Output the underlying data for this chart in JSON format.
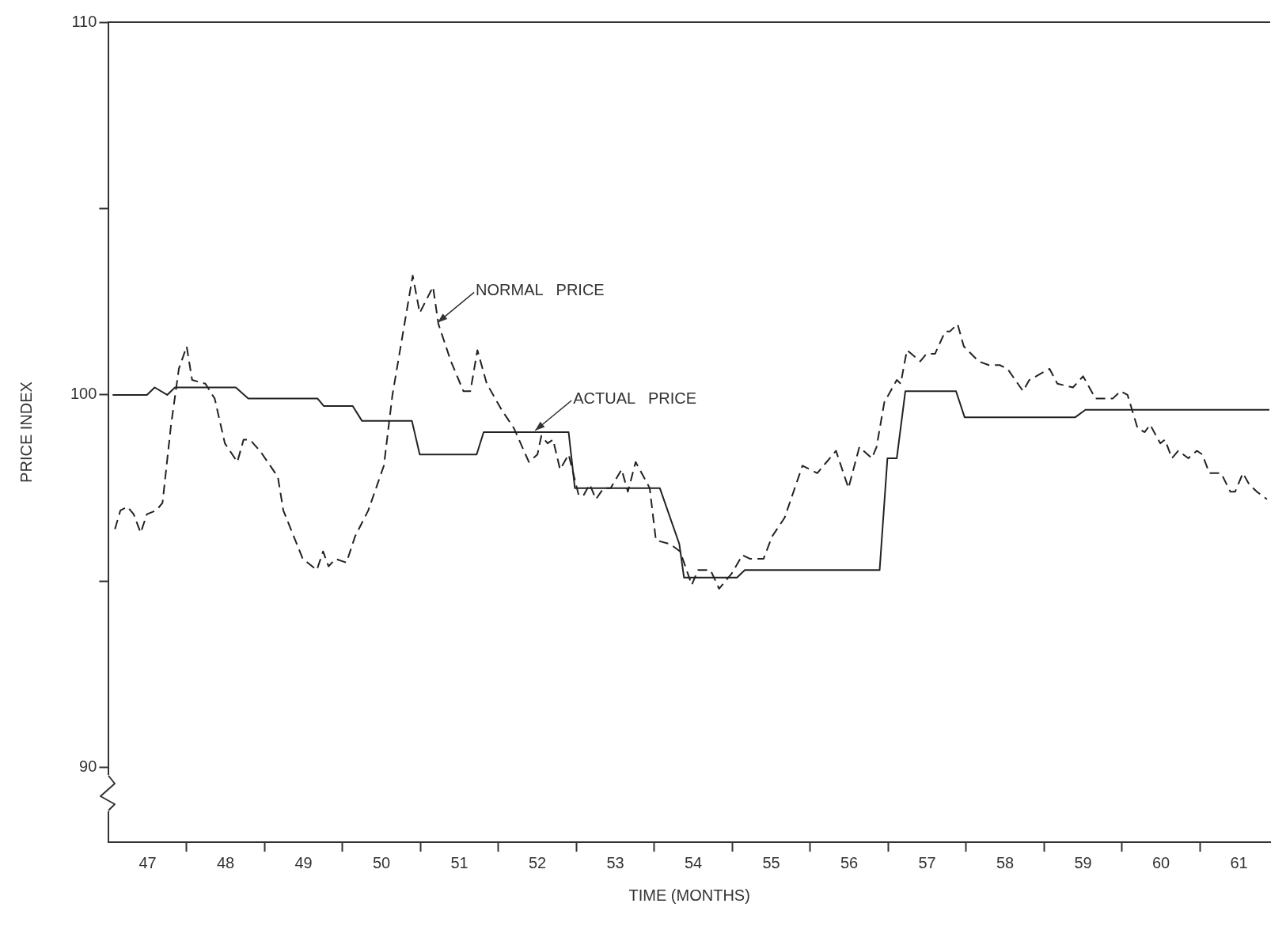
{
  "chart_data": {
    "type": "line",
    "xlabel": "TIME (MONTHS)",
    "ylabel": "PRICE INDEX",
    "xlim": [
      47,
      61.9
    ],
    "ylim": [
      88,
      110
    ],
    "xticks": [
      {
        "value": 47.5,
        "label": "47"
      },
      {
        "value": 48,
        "label": null
      },
      {
        "value": 48.5,
        "label": "48"
      },
      {
        "value": 49,
        "label": null
      },
      {
        "value": 49.5,
        "label": "49"
      },
      {
        "value": 50,
        "label": null
      },
      {
        "value": 50.5,
        "label": "50"
      },
      {
        "value": 51,
        "label": null
      },
      {
        "value": 51.5,
        "label": "51"
      },
      {
        "value": 52,
        "label": null
      },
      {
        "value": 52.5,
        "label": "52"
      },
      {
        "value": 53,
        "label": null
      },
      {
        "value": 53.5,
        "label": "53"
      },
      {
        "value": 54,
        "label": null
      },
      {
        "value": 54.5,
        "label": "54"
      },
      {
        "value": 55,
        "label": null
      },
      {
        "value": 55.5,
        "label": "55"
      },
      {
        "value": 56,
        "label": null
      },
      {
        "value": 56.5,
        "label": "56"
      },
      {
        "value": 57,
        "label": null
      },
      {
        "value": 57.5,
        "label": "57"
      },
      {
        "value": 58,
        "label": null
      },
      {
        "value": 58.5,
        "label": "58"
      },
      {
        "value": 59,
        "label": null
      },
      {
        "value": 59.5,
        "label": "59"
      },
      {
        "value": 60,
        "label": null
      },
      {
        "value": 60.5,
        "label": "60"
      },
      {
        "value": 61,
        "label": null
      },
      {
        "value": 61.5,
        "label": "61"
      }
    ],
    "yticks": [
      90,
      {
        "value": 95,
        "label": null
      },
      100,
      {
        "value": 105,
        "label": null
      },
      110
    ],
    "grid": false,
    "legend": false,
    "marker": "none",
    "annotations": [
      {
        "text": "NORMAL PRICE",
        "x": 51.2,
        "y": 101.9
      },
      {
        "text": "ACTUAL PRICE",
        "x": 52.45,
        "y": 99.0
      }
    ],
    "series": [
      {
        "color": "#222222",
        "line_style": "dashed",
        "x": [
          47.08,
          47.15,
          47.24,
          47.32,
          47.41,
          47.49,
          47.61,
          47.69,
          47.8,
          47.9,
          48.0,
          48.07,
          48.24,
          48.36,
          48.49,
          48.65,
          48.73,
          48.81,
          48.94,
          49.17,
          49.24,
          49.49,
          49.67,
          49.75,
          49.82,
          49.91,
          50.05,
          50.16,
          50.33,
          50.53,
          50.64,
          50.9,
          50.99,
          51.16,
          51.23,
          51.39,
          51.55,
          51.64,
          51.73,
          51.85,
          52.04,
          52.2,
          52.39,
          52.5,
          52.55,
          52.63,
          52.7,
          52.79,
          52.9,
          53.03,
          53.09,
          53.17,
          53.25,
          53.35,
          53.44,
          53.58,
          53.66,
          53.76,
          53.94,
          54.02,
          54.2,
          54.33,
          54.48,
          54.56,
          54.72,
          54.83,
          54.99,
          55.13,
          55.23,
          55.4,
          55.51,
          55.67,
          55.9,
          56.09,
          56.33,
          56.49,
          56.63,
          56.79,
          56.85,
          56.95,
          57.11,
          57.16,
          57.24,
          57.41,
          57.49,
          57.6,
          57.73,
          57.79,
          57.89,
          57.97,
          58.16,
          58.29,
          58.43,
          58.53,
          58.73,
          58.81,
          59.07,
          59.17,
          59.37,
          59.5,
          59.66,
          59.88,
          59.98,
          60.07,
          60.2,
          60.29,
          60.36,
          60.49,
          60.55,
          60.64,
          60.72,
          60.85,
          60.96,
          61.03,
          61.12,
          61.27,
          61.39,
          61.45,
          61.55,
          61.63,
          61.73,
          61.86
        ],
        "values": [
          96.4,
          96.9,
          97.0,
          96.8,
          96.3,
          96.8,
          96.9,
          97.1,
          99.2,
          100.7,
          101.3,
          100.4,
          100.3,
          99.9,
          98.7,
          98.2,
          98.8,
          98.8,
          98.5,
          97.8,
          96.9,
          95.6,
          95.3,
          95.8,
          95.4,
          95.6,
          95.5,
          96.2,
          96.9,
          98.1,
          100.0,
          103.2,
          102.2,
          102.9,
          101.9,
          100.9,
          100.1,
          100.1,
          101.2,
          100.3,
          99.6,
          99.1,
          98.2,
          98.4,
          98.9,
          98.7,
          98.8,
          98.0,
          98.4,
          97.3,
          97.3,
          97.6,
          97.2,
          97.5,
          97.5,
          98.0,
          97.4,
          98.2,
          97.5,
          96.1,
          96.0,
          95.8,
          94.9,
          95.3,
          95.3,
          94.8,
          95.2,
          95.7,
          95.6,
          95.6,
          96.2,
          96.7,
          98.1,
          97.9,
          98.5,
          97.5,
          98.6,
          98.3,
          98.6,
          99.8,
          100.4,
          100.3,
          101.2,
          100.9,
          101.1,
          101.1,
          101.7,
          101.7,
          101.9,
          101.3,
          100.9,
          100.8,
          100.8,
          100.7,
          100.1,
          100.4,
          100.7,
          100.3,
          100.2,
          100.5,
          99.9,
          99.9,
          100.1,
          100.0,
          99.1,
          99.0,
          99.2,
          98.7,
          98.8,
          98.3,
          98.5,
          98.3,
          98.5,
          98.4,
          97.9,
          97.9,
          97.4,
          97.4,
          97.9,
          97.6,
          97.4,
          97.2
        ]
      },
      {
        "color": "#222222",
        "line_style": "solid",
        "x": [
          47.05,
          47.49,
          47.59,
          47.75,
          47.85,
          48.63,
          48.79,
          49.68,
          49.76,
          50.13,
          50.25,
          50.89,
          50.99,
          51.72,
          51.81,
          52.9,
          52.98,
          54.07,
          54.32,
          54.38,
          55.06,
          55.16,
          56.89,
          56.99,
          57.11,
          57.22,
          57.87,
          57.98,
          59.4,
          59.53,
          61.89
        ],
        "values": [
          100.0,
          100.0,
          100.2,
          100.0,
          100.2,
          100.2,
          99.9,
          99.9,
          99.7,
          99.7,
          99.3,
          99.3,
          98.4,
          98.4,
          99.0,
          99.0,
          97.5,
          97.5,
          96.0,
          95.1,
          95.1,
          95.3,
          95.3,
          98.3,
          98.3,
          100.1,
          100.1,
          99.4,
          99.4,
          99.6,
          99.6
        ]
      }
    ]
  }
}
